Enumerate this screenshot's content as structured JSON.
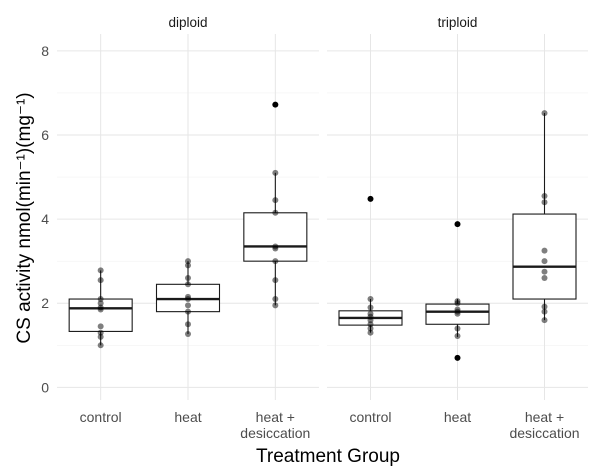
{
  "chart_data": {
    "type": "box",
    "xlabel": "Treatment Group",
    "ylabel": "CS activity nmol(min⁻¹)(mg⁻¹)",
    "ylim": [
      -0.3,
      8.4
    ],
    "yticks": [
      0,
      2,
      4,
      6,
      8
    ],
    "grid": true,
    "facets": [
      {
        "label": "diploid",
        "categories": [
          "control",
          "heat",
          "heat +\ndesiccation"
        ],
        "boxes": [
          {
            "q1": 1.33,
            "median": 1.88,
            "q3": 2.1,
            "whisker_low": 1.0,
            "whisker_high": 2.78,
            "outliers": [],
            "points": [
              1.0,
              1.2,
              1.3,
              1.45,
              1.85,
              1.9,
              2.0,
              2.1,
              2.55,
              2.78
            ]
          },
          {
            "q1": 1.8,
            "median": 2.1,
            "q3": 2.45,
            "whisker_low": 1.27,
            "whisker_high": 3.0,
            "outliers": [],
            "points": [
              1.27,
              1.5,
              1.8,
              1.95,
              2.1,
              2.15,
              2.45,
              2.6,
              2.9,
              3.0
            ]
          },
          {
            "q1": 3.0,
            "median": 3.35,
            "q3": 4.15,
            "whisker_low": 1.95,
            "whisker_high": 5.1,
            "outliers": [
              6.72
            ],
            "points": [
              1.95,
              2.1,
              2.55,
              3.0,
              3.3,
              3.35,
              4.15,
              4.45,
              5.1
            ]
          }
        ]
      },
      {
        "label": "triploid",
        "categories": [
          "control",
          "heat",
          "heat +\ndesiccation"
        ],
        "boxes": [
          {
            "q1": 1.48,
            "median": 1.65,
            "q3": 1.82,
            "whisker_low": 1.3,
            "whisker_high": 2.1,
            "outliers": [
              4.48
            ],
            "points": [
              1.3,
              1.4,
              1.5,
              1.6,
              1.68,
              1.75,
              1.9,
              2.1
            ]
          },
          {
            "q1": 1.5,
            "median": 1.8,
            "q3": 1.98,
            "whisker_low": 1.2,
            "whisker_high": 2.1,
            "outliers": [
              3.88,
              0.7
            ],
            "points": [
              1.22,
              1.4,
              1.75,
              1.8,
              1.85,
              2.0,
              2.05
            ]
          },
          {
            "q1": 2.1,
            "median": 2.87,
            "q3": 4.12,
            "whisker_low": 1.6,
            "whisker_high": 6.52,
            "outliers": [],
            "points": [
              1.6,
              1.8,
              1.92,
              2.6,
              2.75,
              3.0,
              3.25,
              4.4,
              4.55,
              6.52
            ]
          }
        ]
      }
    ]
  }
}
